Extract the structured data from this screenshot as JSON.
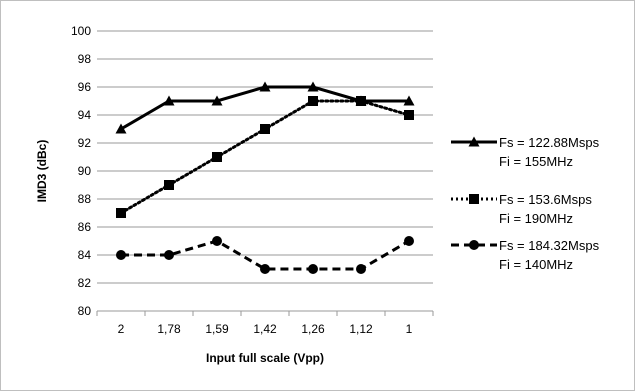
{
  "chart_data": {
    "type": "line",
    "xlabel": "Input full scale (Vpp)",
    "ylabel": "IMD3 (dBc)",
    "categories": [
      "2",
      "1,78",
      "1,59",
      "1,42",
      "1,26",
      "1,12",
      "1"
    ],
    "ylim": [
      80,
      100
    ],
    "yticks": [
      80,
      82,
      84,
      86,
      88,
      90,
      92,
      94,
      96,
      98,
      100
    ],
    "grid": "horizontal",
    "legend_position": "right",
    "series": [
      {
        "name_line1": "Fs = 122.88Msps",
        "name_line2": "Fi = 155MHz",
        "values": [
          93,
          95,
          95,
          96,
          96,
          95,
          95
        ],
        "line_style": "solid",
        "marker": "triangle",
        "color": "#000000"
      },
      {
        "name_line1": "Fs = 153.6Msps",
        "name_line2": "Fi = 190MHz",
        "values": [
          87,
          89,
          91,
          93,
          95,
          95,
          94
        ],
        "line_style": "dotted",
        "marker": "square",
        "color": "#000000"
      },
      {
        "name_line1": "Fs = 184.32Msps",
        "name_line2": "Fi = 140MHz",
        "values": [
          84,
          84,
          85,
          83,
          83,
          83,
          85
        ],
        "line_style": "dashed",
        "marker": "circle",
        "color": "#000000"
      }
    ]
  }
}
